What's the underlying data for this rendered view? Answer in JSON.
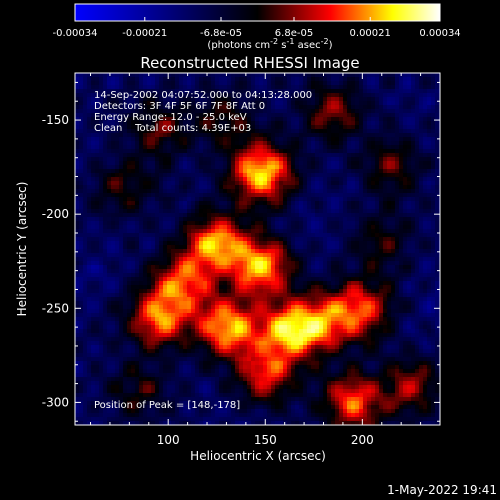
{
  "chart_data": {
    "type": "heatmap",
    "title": "Reconstructed RHESSI Image",
    "xlabel": "Heliocentric X (arcsec)",
    "ylabel": "Heliocentric Y (arcsec)",
    "x_ticks": [
      "100",
      "150",
      "200"
    ],
    "x_tick_values": [
      100,
      150,
      200
    ],
    "y_ticks": [
      "-150",
      "-200",
      "-250",
      "-300"
    ],
    "y_tick_values": [
      -150,
      -200,
      -250,
      -300
    ],
    "xlim": [
      52,
      240
    ],
    "ylim": [
      -312,
      -125
    ],
    "colorbar": {
      "ticks": [
        "-0.00034",
        "-0.00021",
        "-6.8e-05",
        "6.8e-05",
        "0.00021",
        "0.00034"
      ],
      "tick_values": [
        -0.00034,
        -0.00021,
        -6.8e-05,
        6.8e-05,
        0.00021,
        0.00034
      ],
      "range": [
        -0.00034,
        0.00034
      ],
      "unit_line": "(photons cm",
      "unit_exp1": "-2",
      "unit_mid": " s",
      "unit_exp2": "-1",
      "unit_mid2": " asec",
      "unit_exp3": "-2",
      "unit_end": ")",
      "colormap": [
        "#0000ff",
        "#000000",
        "#ff0000",
        "#ffff00",
        "#ffffff"
      ]
    },
    "annotations": {
      "time": "14-Sep-2002 04:07:52.000 to 04:13:28.000",
      "detectors": "Detectors: 3F 4F 5F 6F 7F 8F Att 0",
      "energy": "Energy Range: 12.0 - 25.0 keV",
      "clean": "Clean    Total counts: 4.39E+03",
      "peak": "Position of Peak = [148,-178]"
    },
    "peak": [
      148,
      -178
    ],
    "blobs": [
      {
        "x": 148,
        "y": -178,
        "v": 0.00034
      },
      {
        "x": 125,
        "y": -215,
        "v": 0.00028
      },
      {
        "x": 148,
        "y": -228,
        "v": 0.0003
      },
      {
        "x": 108,
        "y": -235,
        "v": 0.00022
      },
      {
        "x": 95,
        "y": -255,
        "v": 0.00027
      },
      {
        "x": 130,
        "y": -260,
        "v": 0.00031
      },
      {
        "x": 162,
        "y": -262,
        "v": 0.00029
      },
      {
        "x": 180,
        "y": -258,
        "v": 0.0002
      },
      {
        "x": 200,
        "y": -250,
        "v": 0.00022
      },
      {
        "x": 150,
        "y": -285,
        "v": 0.0002
      },
      {
        "x": 195,
        "y": -300,
        "v": 0.00024
      },
      {
        "x": 225,
        "y": -292,
        "v": 0.00015
      },
      {
        "x": 95,
        "y": -155,
        "v": 0.00012
      },
      {
        "x": 130,
        "y": -150,
        "v": 0.0001
      },
      {
        "x": 185,
        "y": -145,
        "v": 0.00014
      },
      {
        "x": 215,
        "y": -175,
        "v": 0.00012
      },
      {
        "x": 78,
        "y": -185,
        "v": 0.0001
      },
      {
        "x": 85,
        "y": -295,
        "v": 9e-05
      },
      {
        "x": 210,
        "y": -215,
        "v": 8e-05
      },
      {
        "x": 60,
        "y": -230,
        "v": -6e-05
      },
      {
        "x": 175,
        "y": -205,
        "v": -5e-05
      },
      {
        "x": 235,
        "y": -250,
        "v": -6e-05
      },
      {
        "x": 110,
        "y": -300,
        "v": -4e-05
      },
      {
        "x": 230,
        "y": -140,
        "v": -4e-05
      }
    ]
  },
  "footer": {
    "timestamp": "1-May-2022 19:41"
  }
}
